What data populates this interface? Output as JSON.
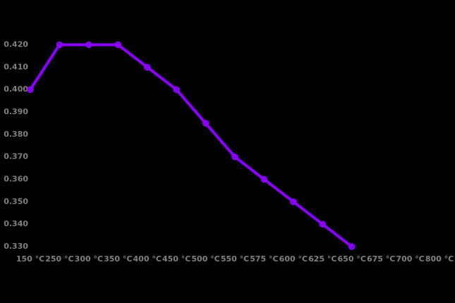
{
  "chart_data": {
    "type": "line",
    "title": "",
    "xlabel": "",
    "ylabel": "",
    "categories": [
      "150 °C",
      "250 °C",
      "300 °C",
      "350 °C",
      "400 °C",
      "450 °C",
      "500 °C",
      "550 °C",
      "575 °C",
      "600 °C",
      "625 °C",
      "650 °C",
      "675 °C",
      "700 °C",
      "800 °C"
    ],
    "series": [
      {
        "name": "",
        "color": "#8B00FF",
        "marker": "open-circle",
        "values": [
          0.4,
          0.42,
          0.42,
          0.42,
          0.41,
          0.4,
          0.385,
          0.37,
          0.36,
          0.35,
          0.34,
          0.33,
          null,
          null,
          null
        ]
      }
    ],
    "y_tick_labels": [
      "0.420",
      "0.410",
      "0.400",
      "0.390",
      "0.380",
      "0.370",
      "0.360",
      "0.350",
      "0.340",
      "0.330"
    ],
    "ylim": [
      0.33,
      0.42
    ],
    "grid": false,
    "legend_position": "none",
    "colors": {
      "background": "#000000",
      "axis_label": "#808080",
      "line": "#8B00FF"
    }
  }
}
